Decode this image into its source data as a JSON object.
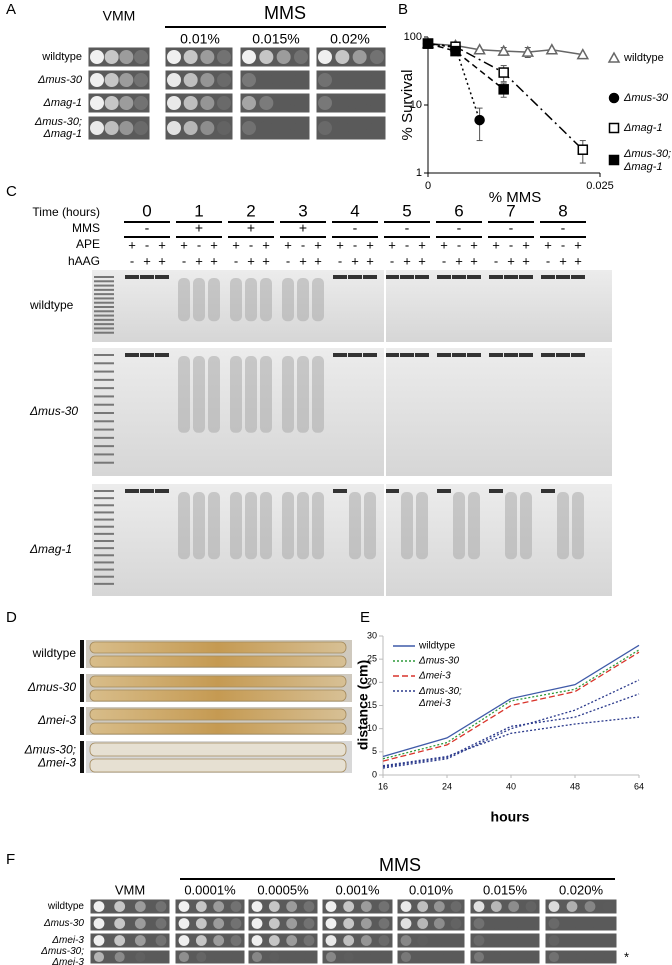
{
  "panel_labels": [
    "A",
    "B",
    "C",
    "D",
    "E",
    "F"
  ],
  "panel_a": {
    "vmm": "VMM",
    "mms": "MMS",
    "concentrations": [
      "0.01%",
      "0.015%",
      "0.02%"
    ],
    "strains": [
      [
        "wildtype"
      ],
      [
        "Δmus-30"
      ],
      [
        "Δmag-1"
      ],
      [
        "Δmus-30;",
        "Δmag-1"
      ]
    ]
  },
  "panel_c": {
    "time_label": "Time (hours)",
    "times": [
      0,
      1,
      2,
      3,
      4,
      5,
      6,
      7,
      8
    ],
    "mms_label": "MMS",
    "mms": [
      "-",
      "+",
      "+",
      "+",
      "-",
      "-",
      "-",
      "-",
      "-"
    ],
    "ape_label": "APE",
    "ape": [
      "+",
      "-",
      "+"
    ],
    "haag_label": "hAAG",
    "haag": [
      "-",
      "+",
      "+"
    ],
    "strains": [
      "wildtype",
      "Δmus-30",
      "Δmag-1"
    ]
  },
  "panel_d": {
    "strains": [
      [
        "wildtype"
      ],
      [
        "Δmus-30"
      ],
      [
        "Δmei-3"
      ],
      [
        "Δmus-30;",
        "Δmei-3"
      ]
    ]
  },
  "panel_f": {
    "mms": "MMS",
    "vmm": "VMM",
    "concentrations": [
      "0.0001%",
      "0.0005%",
      "0.001%",
      "0.010%",
      "0.015%",
      "0.020%"
    ],
    "strains": [
      [
        "wildtype"
      ],
      [
        "Δmus-30"
      ],
      [
        "Δmei-3"
      ],
      [
        "Δmus-30;",
        "Δmei-3"
      ]
    ],
    "note": "*"
  },
  "chart_data": [
    {
      "type": "line",
      "xlabel": "% MMS",
      "ylabel": "% Survival",
      "xlim": [
        0,
        0.025
      ],
      "xticks": [
        0,
        0.025
      ],
      "ylim": [
        1,
        100
      ],
      "yticks": [
        1,
        10,
        100
      ],
      "yscale": "log",
      "series": [
        {
          "name": "wildtype",
          "color": "#666666",
          "marker": "triangle",
          "filled": false,
          "dash": "",
          "x": [
            0,
            0.004,
            0.0075,
            0.011,
            0.0145,
            0.018,
            0.0225
          ],
          "values": [
            80,
            75,
            65,
            62,
            60,
            65,
            55
          ],
          "errors": [
            null,
            null,
            null,
            8,
            10,
            null,
            null
          ]
        },
        {
          "name": "Δmus-30",
          "color": "#000000",
          "marker": "circle",
          "filled": true,
          "dash": "2,3",
          "x": [
            0,
            0.004,
            0.0075
          ],
          "values": [
            80,
            70,
            6
          ],
          "errors": [
            null,
            10,
            3
          ]
        },
        {
          "name": "Δmag-1",
          "color": "#000000",
          "marker": "square",
          "filled": false,
          "dash": "10,4,2,4",
          "x": [
            0,
            0.004,
            0.011,
            0.0225
          ],
          "values": [
            80,
            72,
            30,
            2.2
          ],
          "errors": [
            null,
            null,
            8,
            0.8
          ]
        },
        {
          "name": "Δmus-30; Δmag-1",
          "color": "#000000",
          "marker": "square",
          "filled": true,
          "dash": "6,4",
          "x": [
            0,
            0.004,
            0.011
          ],
          "values": [
            80,
            62,
            17
          ],
          "errors": [
            null,
            null,
            4
          ]
        }
      ]
    },
    {
      "type": "line",
      "xlabel": "hours",
      "ylabel": "distance (cm)",
      "categories": [
        16,
        24,
        40,
        48,
        64
      ],
      "ylim": [
        0,
        30
      ],
      "yticks": [
        0,
        5,
        10,
        15,
        20,
        25,
        30
      ],
      "series": [
        {
          "name": "wildtype",
          "color": "#3f5aa8",
          "dash": "",
          "values": [
            4,
            8,
            16.5,
            19.5,
            28
          ]
        },
        {
          "name": "Δmus-30",
          "color": "#2e9a3a",
          "dash": "2,2",
          "values": [
            3.5,
            7,
            16,
            18.5,
            27
          ]
        },
        {
          "name": "Δmei-3",
          "color": "#d9342b",
          "dash": "6,3",
          "values": [
            3,
            6.5,
            15,
            18,
            26.5
          ]
        },
        {
          "name": "Δmus-30; Δmei-3",
          "color": "#2b3a8c",
          "dash": "2,2",
          "values": [
            1.5,
            3.5,
            10,
            14,
            20.5
          ]
        },
        {
          "color": "#2b3a8c",
          "dash": "2,2",
          "values": [
            2,
            4,
            9,
            11,
            12.5
          ]
        },
        {
          "color": "#2b3a8c",
          "dash": "2,2",
          "values": [
            1.8,
            3.8,
            10.5,
            12.5,
            17.5
          ]
        }
      ]
    }
  ]
}
